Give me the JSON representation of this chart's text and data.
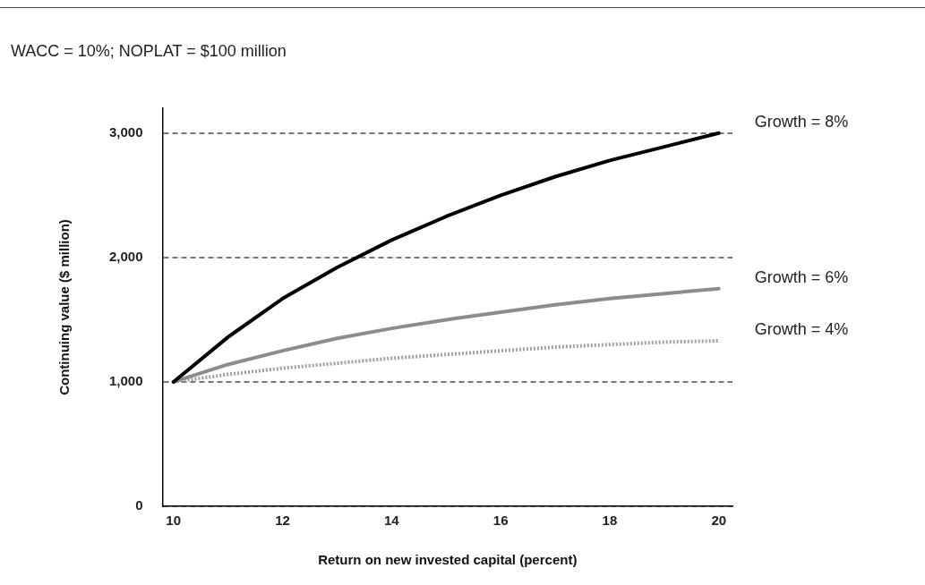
{
  "chart_data": {
    "type": "line",
    "title": "WACC = 10%; NOPLAT = $100 million",
    "xlabel": "Return on new invested capital (percent)",
    "ylabel": "Continuing value ($ million)",
    "x": [
      10,
      11,
      12,
      13,
      14,
      15,
      16,
      17,
      18,
      19,
      20
    ],
    "series": [
      {
        "name": "Growth = 8%",
        "color": "#000000",
        "line_style": "solid",
        "values": [
          1000,
          1360,
          1670,
          1920,
          2140,
          2330,
          2500,
          2650,
          2780,
          2890,
          3000
        ]
      },
      {
        "name": "Growth = 6%",
        "color": "#8c8c8c",
        "line_style": "solid",
        "values": [
          1000,
          1140,
          1250,
          1350,
          1430,
          1500,
          1560,
          1620,
          1670,
          1710,
          1750
        ]
      },
      {
        "name": "Growth = 4%",
        "color": "#a0a0a0",
        "line_style": "dotted",
        "values": [
          1000,
          1060,
          1110,
          1150,
          1190,
          1220,
          1250,
          1280,
          1300,
          1320,
          1330
        ]
      }
    ],
    "xlim": [
      9.8,
      20.25
    ],
    "xticks": [
      10,
      12,
      14,
      16,
      18,
      20
    ],
    "ylim": [
      0,
      3200
    ],
    "yticks": [
      {
        "value": 0,
        "label": "0"
      },
      {
        "value": 1000,
        "label": "1,000"
      },
      {
        "value": 2000,
        "label": "2,000"
      },
      {
        "value": 3000,
        "label": "3,000"
      }
    ],
    "grid": "y",
    "legend": false,
    "marker": "none"
  }
}
